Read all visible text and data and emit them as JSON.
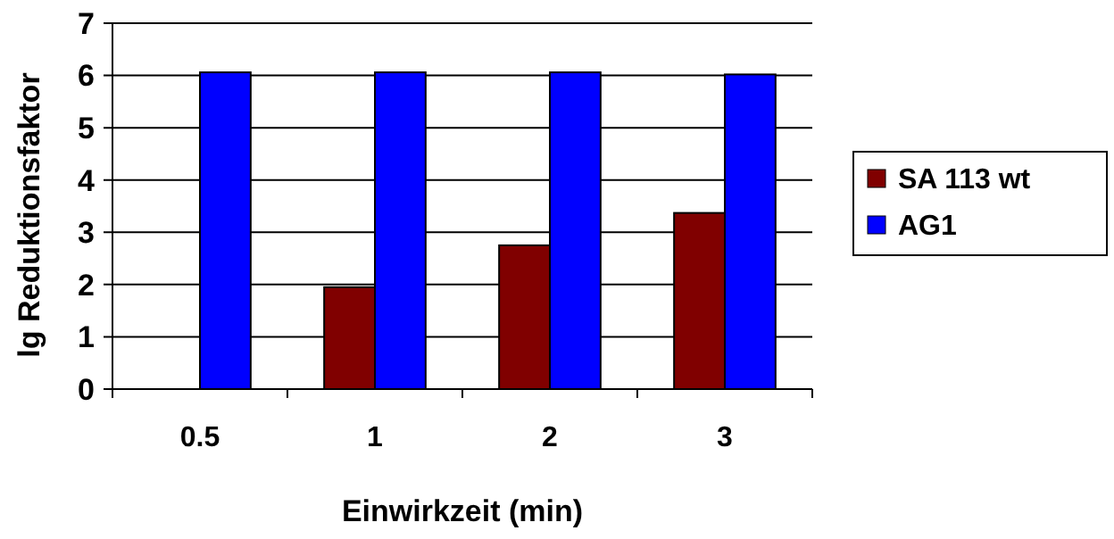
{
  "chart_data": {
    "type": "bar",
    "xlabel": "Einwirkzeit (min)",
    "ylabel": "lg Reduktionsfaktor",
    "categories": [
      "0.5",
      "1",
      "2",
      "3"
    ],
    "series": [
      {
        "name": "SA 113 wt",
        "color": "#800000",
        "values": [
          null,
          1.95,
          2.75,
          3.37
        ]
      },
      {
        "name": "AG1",
        "color": "#0000ff",
        "values": [
          6.06,
          6.06,
          6.06,
          6.02
        ]
      }
    ],
    "ylim": [
      0,
      7
    ],
    "yticks": [
      0,
      1,
      2,
      3,
      4,
      5,
      6,
      7
    ],
    "grid": "y",
    "legend": "right"
  }
}
